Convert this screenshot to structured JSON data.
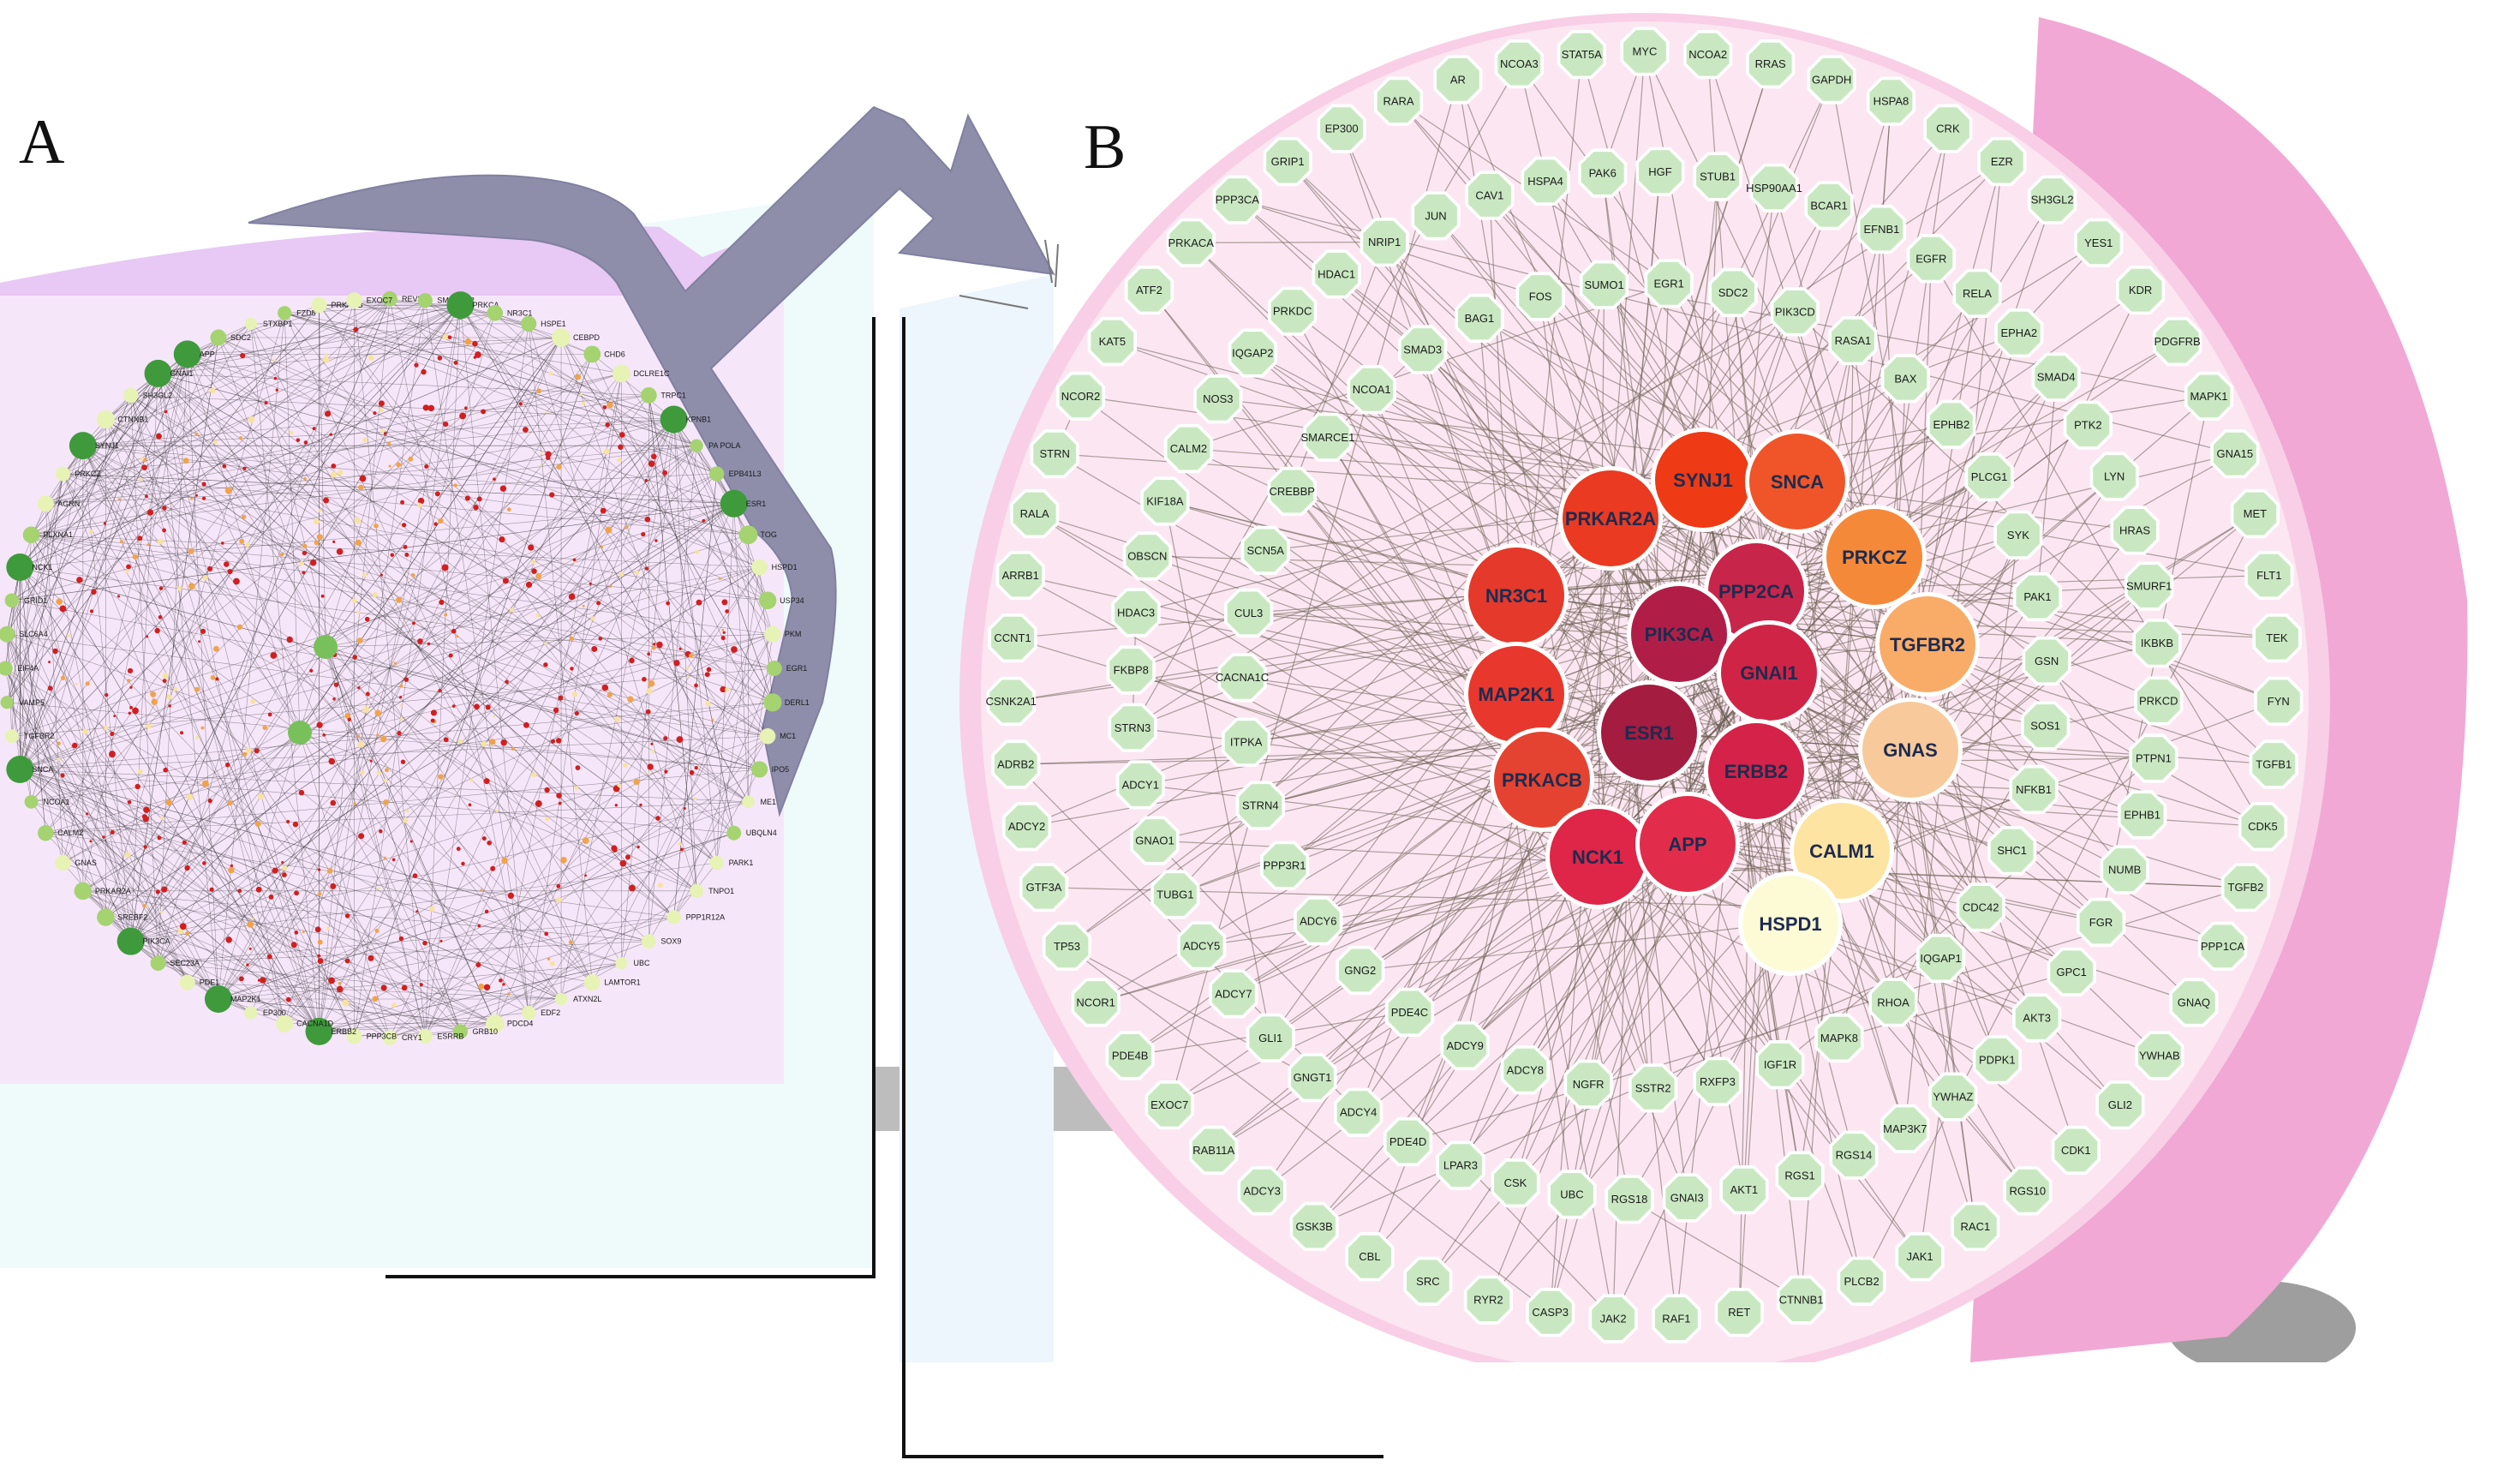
{
  "panels": {
    "a_label": "A",
    "b_label": "B"
  },
  "colors": {
    "hex_node": "#c9e8c2",
    "hex_stroke": "#ffffff",
    "edge": "#6b5e52",
    "background_b": "#fbe6f2",
    "rim_b": "#f3b4d9",
    "arrow": "#8a8aa6"
  },
  "panel_a": {
    "hub_nodes": [
      "ESR1",
      "PRKCA",
      "PIK3CA",
      "NCK1",
      "GNAI1",
      "APP",
      "ERBB2",
      "MAP2K1",
      "SYNJ1",
      "KPNB1",
      "SNCA"
    ],
    "labels": [
      "REV3L",
      "SMARCA2",
      "PRKCA",
      "NR3C1",
      "HSPE1",
      "CEBPD",
      "CHD6",
      "DCLRE1C",
      "TRPC1",
      "KPNB1",
      "PA POLA",
      "EPB41L3",
      "ESR1",
      "TOG",
      "HSPD1",
      "USP34",
      "PKM",
      "EGR1",
      "DERL1",
      "MC1",
      "IPO5",
      "ME1",
      "UBQLN4",
      "PARK1",
      "TNPO1",
      "PPP1R12A",
      "SOX9",
      "UBC",
      "LAMTOR1",
      "ATXN2L",
      "EDF2",
      "PDCD4",
      "GRB10",
      "ESRRB",
      "CRY1",
      "PPP3CB",
      "ERBB2",
      "CACNA1D",
      "EP300",
      "MAP2K1",
      "PDE1",
      "SEC23A",
      "PIK3CA",
      "SREBF2",
      "PRKAR2A",
      "GNAS",
      "CALM2",
      "NCOA1",
      "SNCA",
      "TGFBR2",
      "VAMP5",
      "EIF4A",
      "SLC6A4",
      "GRID1",
      "NCK1",
      "PLXNA1",
      "AGRN",
      "PRKCZ",
      "SYNJ1",
      "CTNNB1",
      "SH3GL2",
      "GNAI1",
      "APP",
      "SDC2",
      "STXBP1",
      "FZD5",
      "PRKACB",
      "EXOC7"
    ]
  },
  "panel_b": {
    "hubs": [
      {
        "label": "SYNJ1",
        "color": "#ee3a15"
      },
      {
        "label": "SNCA",
        "color": "#ef5529"
      },
      {
        "label": "PRKAR2A",
        "color": "#ea3a22"
      },
      {
        "label": "PRKCZ",
        "color": "#f5893a"
      },
      {
        "label": "PPP2CA",
        "color": "#c8254a"
      },
      {
        "label": "NR3C1",
        "color": "#e5392b"
      },
      {
        "label": "PIK3CA",
        "color": "#b01e48"
      },
      {
        "label": "GNAI1",
        "color": "#d02446"
      },
      {
        "label": "TGFBR2",
        "color": "#f9ab68"
      },
      {
        "label": "MAP2K1",
        "color": "#e8372d"
      },
      {
        "label": "ESR1",
        "color": "#a41c40"
      },
      {
        "label": "GNAS",
        "color": "#f8c99b"
      },
      {
        "label": "PRKACB",
        "color": "#e44331"
      },
      {
        "label": "ERBB2",
        "color": "#d42248"
      },
      {
        "label": "NCK1",
        "color": "#df2548"
      },
      {
        "label": "APP",
        "color": "#e12d4b"
      },
      {
        "label": "CALM1",
        "color": "#fde4a2"
      },
      {
        "label": "HSPD1",
        "color": "#fdfbd6"
      }
    ],
    "ring1": [
      "SDC2",
      "PIK3CD",
      "RASA1",
      "BAX",
      "EPHB2",
      "PLCG1",
      "SYK",
      "PAK1",
      "GSN",
      "SOS1",
      "NFKB1",
      "SHC1",
      "CDC42",
      "IQGAP1",
      "RHOA",
      "MAPK8",
      "IGF1R",
      "RXFP3",
      "SSTR2",
      "RGS18",
      "UBC",
      "CSK",
      "LPAR3",
      "PDE4D",
      "ADCY4",
      "GNGT1",
      "GLI1",
      "ADCY7",
      "ADCY5",
      "TUBG1",
      "GNAO1",
      "ADCY1",
      "STRN3",
      "FKBP8",
      "HDAC3",
      "OBSCN",
      "KIF18A",
      "CALM2",
      "NOS3",
      "IQGAP2",
      "PRKDC",
      "HDAC1",
      "NRIP1",
      "JUN",
      "CAV1",
      "EP300",
      "RARA",
      "AR",
      "NCOA3",
      "STAT5A",
      "MYC",
      "NCOA2",
      "RRAS",
      "GAPDH",
      "HSPA8",
      "CRK",
      "EZR",
      "SH3GL2",
      "YES1",
      "KDR",
      "PDGFRB",
      "MAPK1",
      "GNA15",
      "MET",
      "FLT1",
      "TEK",
      "FYN",
      "TGFB1",
      "CDK5",
      "TGFB2",
      "PPP1CA",
      "GNAQ",
      "YWHAB",
      "GLI2",
      "CDK1",
      "RGS10",
      "RAC1",
      "JAK1",
      "PLCB2",
      "CTNNB1",
      "RET",
      "RAF1",
      "JAK2",
      "CASP3",
      "RYR2",
      "SRC",
      "CBL",
      "GSK3B",
      "ADCY3",
      "RAB11A",
      "EXOC7",
      "PDE4B",
      "NCOR1",
      "TP53",
      "GTF3A",
      "ADCY2",
      "ADRB2",
      "CSNK2A1",
      "CCNT1",
      "ARRB1",
      "RALA",
      "STRN",
      "NCOR2",
      "KAT5",
      "ATF2",
      "PRKACA",
      "PPP3CA",
      "GRIP1",
      "EP300b"
    ],
    "ring_outer": [
      "MYC",
      "NCOA2",
      "RRAS",
      "GAPDH",
      "HSPA8",
      "CRK",
      "EZR",
      "SH3GL2",
      "YES1",
      "KDR",
      "PDGFRB",
      "MAPK1",
      "GNA15",
      "MET",
      "FLT1",
      "TEK",
      "FYN",
      "TGFB1",
      "CDK5",
      "TGFB2",
      "PPP1CA",
      "GNAQ",
      "YWHAB",
      "GLI2",
      "CDK1",
      "RGS10",
      "RAC1",
      "JAK1",
      "PLCB2",
      "CTNNB1",
      "RET",
      "RAF1",
      "JAK2",
      "CASP3",
      "RYR2",
      "SRC",
      "CBL",
      "GSK3B",
      "ADCY3",
      "RAB11A",
      "EXOC7",
      "PDE4B",
      "NCOR1",
      "TP53",
      "GTF3A",
      "ADCY2",
      "ADRB2",
      "CSNK2A1",
      "CCNT1",
      "ARRB1",
      "RALA",
      "STRN",
      "NCOR2",
      "KAT5",
      "ATF2",
      "PRKACA",
      "PPP3CA",
      "GRIP1",
      "EP300",
      "RARA",
      "AR",
      "NCOA3",
      "STAT5A"
    ],
    "ring_middle": [
      "HGF",
      "STUB1",
      "HSP90AA1",
      "BCAR1",
      "EFNB1",
      "EGFR",
      "RELA",
      "EPHA2",
      "SMAD4",
      "PTK2",
      "LYN",
      "HRAS",
      "SMURF1",
      "IKBKB",
      "PRKCD",
      "PTPN1",
      "EPHB1",
      "NUMB",
      "FGR",
      "GPC1",
      "AKT3",
      "PDPK1",
      "YWHAZ",
      "MAP3K7",
      "RGS14",
      "RGS1",
      "AKT1",
      "GNAI3",
      "RGS18",
      "UBC",
      "CSK",
      "LPAR3",
      "PDE4D",
      "ADCY4",
      "GNGT1",
      "GLI1",
      "ADCY7",
      "ADCY5",
      "TUBG1",
      "GNAO1",
      "ADCY1",
      "STRN3",
      "FKBP8",
      "HDAC3",
      "OBSCN",
      "KIF18A",
      "CALM2",
      "NOS3",
      "IQGAP2",
      "PRKDC",
      "HDAC1",
      "NRIP1",
      "JUN",
      "CAV1",
      "HSPA4",
      "PAK6"
    ],
    "ring_inner": [
      "EGR1",
      "SDC2",
      "PIK3CD",
      "RASA1",
      "BAX",
      "EPHB2",
      "PLCG1",
      "SYK",
      "PAK1",
      "GSN",
      "SOS1",
      "NFKB1",
      "SHC1",
      "CDC42",
      "IQGAP1",
      "RHOA",
      "MAPK8",
      "IGF1R",
      "RXFP3",
      "SSTR2",
      "NGFR",
      "ADCY8",
      "ADCY9",
      "PDE4C",
      "GNG2",
      "ADCY6",
      "PPP3R1",
      "STRN4",
      "ITPKA",
      "CACNA1C",
      "CUL3",
      "SCN5A",
      "CREBBP",
      "SMARCE1",
      "NCOA1",
      "SMAD3",
      "BAG1",
      "FOS",
      "SUMO1"
    ]
  }
}
